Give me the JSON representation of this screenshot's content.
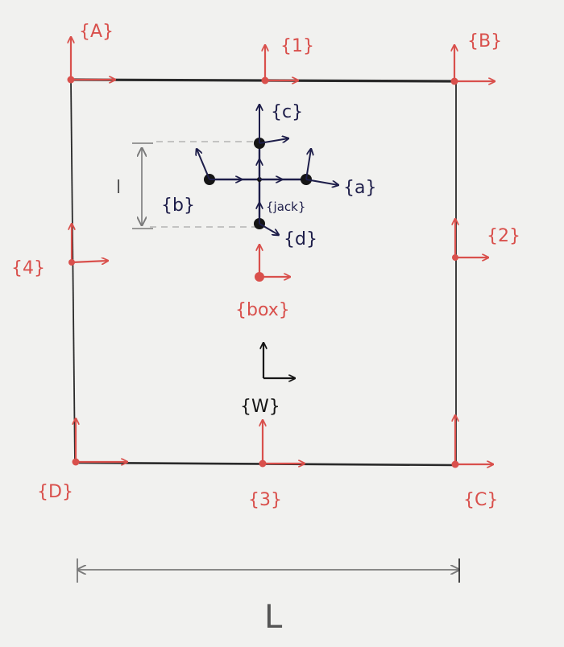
{
  "colors": {
    "background": "#f1f1ef",
    "box_outline": "#2a2a2a",
    "box_frames": "#d9504c",
    "jack_frames": "#1e1e4a",
    "world_frame": "#151515",
    "dimension": "#7a7a7a",
    "dashed": "#a8a8a8"
  },
  "frames": {
    "A": "{A}",
    "B": "{B}",
    "C": "{C}",
    "D": "{D}",
    "one": "{1}",
    "two": "{2}",
    "three": "{3}",
    "four": "{4}",
    "box": "{box}",
    "world": "{W}",
    "jack": "{jack}",
    "a": "{a}",
    "b": "{b}",
    "c": "{c}",
    "d": "{d}"
  },
  "dimensions": {
    "box_side": "L",
    "jack_size": "l"
  }
}
